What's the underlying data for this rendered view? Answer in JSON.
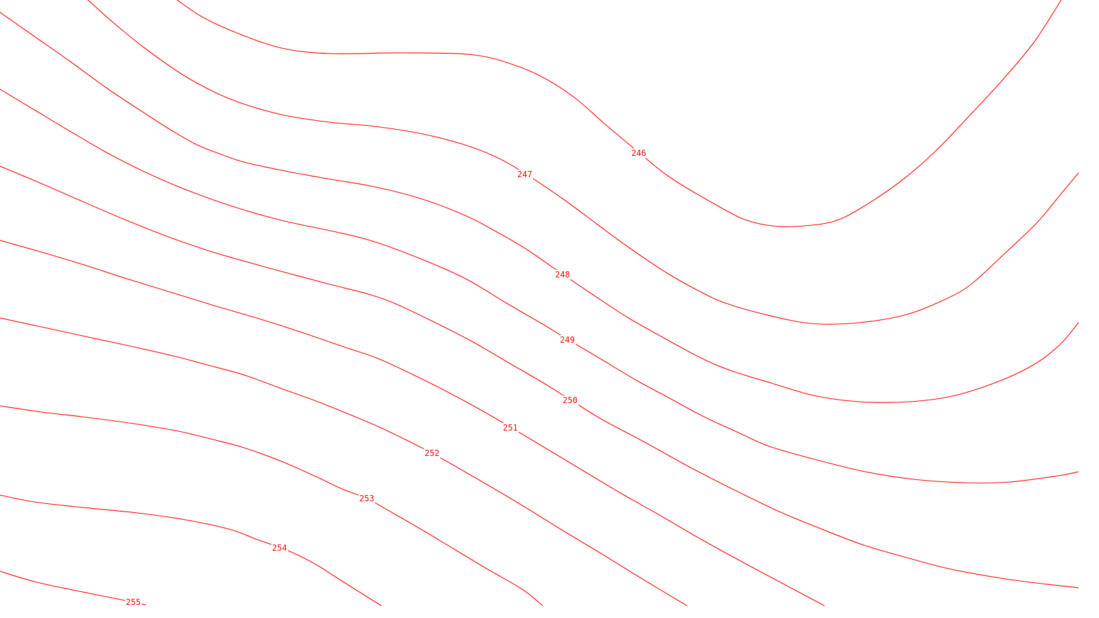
{
  "map": {
    "style": {
      "line_color": "#ff0000",
      "background": "#ffffff"
    },
    "contours": [
      {
        "elevation": 246,
        "label": "246"
      },
      {
        "elevation": 247,
        "label": "247"
      },
      {
        "elevation": 248,
        "label": "248"
      },
      {
        "elevation": 249,
        "label": "249"
      },
      {
        "elevation": 250,
        "label": "250"
      },
      {
        "elevation": 251,
        "label": "251"
      },
      {
        "elevation": 252,
        "label": "252"
      },
      {
        "elevation": 253,
        "label": "253"
      },
      {
        "elevation": 254,
        "label": "254"
      },
      {
        "elevation": 255,
        "label": "255"
      }
    ]
  }
}
